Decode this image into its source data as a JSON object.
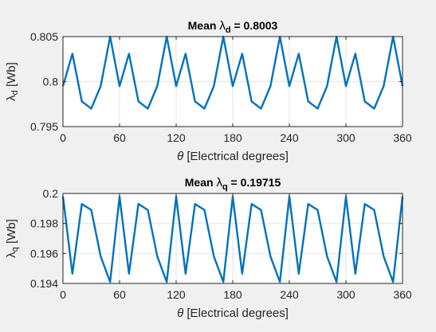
{
  "chart_data": [
    {
      "type": "line",
      "title_prefix": "Mean ",
      "title_symbol": "λ",
      "title_subscript": "d",
      "title_suffix": " = 0.8003",
      "ylabel_symbol": "λ",
      "ylabel_subscript": "d",
      "ylabel_suffix": " [Wb]",
      "xlabel_symbol": "θ",
      "xlabel_suffix": " [Electrical degrees]",
      "xlim": [
        0,
        360
      ],
      "ylim": [
        0.795,
        0.805
      ],
      "xticks": [
        0,
        60,
        120,
        180,
        240,
        300,
        360
      ],
      "xtick_labels": [
        "0",
        "60",
        "120",
        "180",
        "240",
        "300",
        "360"
      ],
      "yticks": [
        0.795,
        0.8,
        0.805
      ],
      "ytick_labels": [
        "0.795",
        "0.8",
        "0.805"
      ],
      "grid": true,
      "series": [
        {
          "color": "#0072bd",
          "x": [
            0,
            10,
            20,
            30,
            40,
            50,
            60,
            70,
            80,
            90,
            100,
            110,
            120,
            130,
            140,
            150,
            160,
            170,
            180,
            190,
            200,
            210,
            220,
            230,
            240,
            250,
            260,
            270,
            280,
            290,
            300,
            310,
            320,
            330,
            340,
            350,
            360
          ],
          "values": [
            0.7995,
            0.8031,
            0.7978,
            0.797,
            0.7995,
            0.805,
            0.7995,
            0.8031,
            0.7978,
            0.797,
            0.7995,
            0.805,
            0.7995,
            0.8031,
            0.7978,
            0.797,
            0.7995,
            0.805,
            0.7995,
            0.8031,
            0.7978,
            0.797,
            0.7995,
            0.805,
            0.7995,
            0.8031,
            0.7978,
            0.797,
            0.7995,
            0.805,
            0.7995,
            0.8031,
            0.7978,
            0.797,
            0.7995,
            0.805,
            0.7995
          ]
        }
      ]
    },
    {
      "type": "line",
      "title_prefix": "Mean ",
      "title_symbol": "λ",
      "title_subscript": "q",
      "title_suffix": " = 0.19715",
      "ylabel_symbol": "λ",
      "ylabel_subscript": "q",
      "ylabel_suffix": " [Wb]",
      "xlabel_symbol": "θ",
      "xlabel_suffix": " [Electrical degrees]",
      "xlim": [
        0,
        360
      ],
      "ylim": [
        0.194,
        0.2
      ],
      "xticks": [
        0,
        60,
        120,
        180,
        240,
        300,
        360
      ],
      "xtick_labels": [
        "0",
        "60",
        "120",
        "180",
        "240",
        "300",
        "360"
      ],
      "yticks": [
        0.194,
        0.196,
        0.198,
        0.2
      ],
      "ytick_labels": [
        "0.194",
        "0.196",
        "0.198",
        "0.2"
      ],
      "grid": true,
      "series": [
        {
          "color": "#0072bd",
          "x": [
            0,
            10,
            20,
            30,
            40,
            50,
            60,
            70,
            80,
            90,
            100,
            110,
            120,
            130,
            140,
            150,
            160,
            170,
            180,
            190,
            200,
            210,
            220,
            230,
            240,
            250,
            260,
            270,
            280,
            290,
            300,
            310,
            320,
            330,
            340,
            350,
            360
          ],
          "values": [
            0.1998,
            0.19465,
            0.1993,
            0.1989,
            0.1958,
            0.1941,
            0.1998,
            0.19465,
            0.1993,
            0.1989,
            0.1958,
            0.1941,
            0.1998,
            0.19465,
            0.1993,
            0.1989,
            0.1958,
            0.1941,
            0.1998,
            0.19465,
            0.1993,
            0.1989,
            0.1958,
            0.1941,
            0.1998,
            0.19465,
            0.1993,
            0.1989,
            0.1958,
            0.1941,
            0.1998,
            0.19465,
            0.1993,
            0.1989,
            0.1958,
            0.1941,
            0.1998
          ]
        }
      ]
    }
  ]
}
